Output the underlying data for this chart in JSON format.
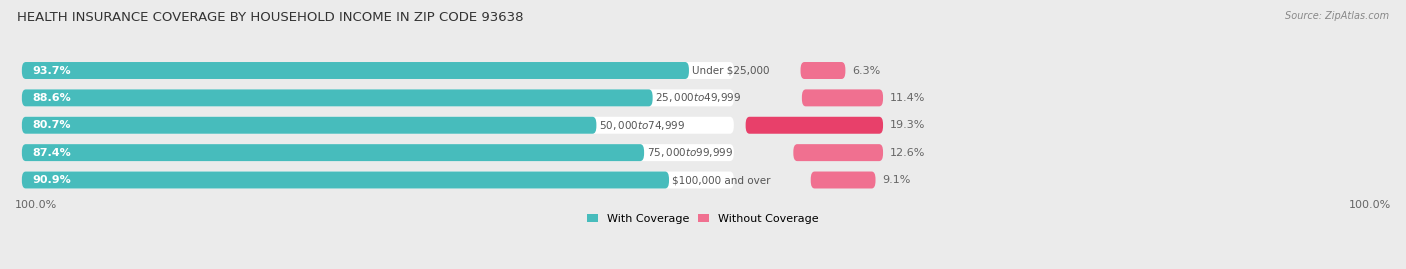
{
  "title": "HEALTH INSURANCE COVERAGE BY HOUSEHOLD INCOME IN ZIP CODE 93638",
  "source": "Source: ZipAtlas.com",
  "categories": [
    "Under $25,000",
    "$25,000 to $49,999",
    "$50,000 to $74,999",
    "$75,000 to $99,999",
    "$100,000 and over"
  ],
  "with_coverage": [
    93.7,
    88.6,
    80.7,
    87.4,
    90.9
  ],
  "without_coverage": [
    6.3,
    11.4,
    19.3,
    12.6,
    9.1
  ],
  "color_with": "#47bcbc",
  "color_without": "#f07090",
  "color_without_row3": "#e8406a",
  "bg_color": "#ebebeb",
  "bar_bg": "#ffffff",
  "title_fontsize": 9.5,
  "label_fontsize": 8,
  "tick_fontsize": 8,
  "legend_fontsize": 8,
  "source_fontsize": 7
}
